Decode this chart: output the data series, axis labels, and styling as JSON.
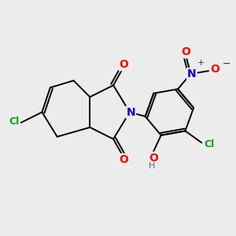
{
  "bg_color": "#ECECEC",
  "bond_color": "#000000",
  "bond_width": 1.4,
  "atom_colors": {
    "C": "#000000",
    "N": "#0000CC",
    "O": "#FF0000",
    "Cl": "#00AA00",
    "H": "#666666"
  },
  "font_size_atom": 10,
  "figsize": [
    3.0,
    3.0
  ],
  "dpi": 100
}
